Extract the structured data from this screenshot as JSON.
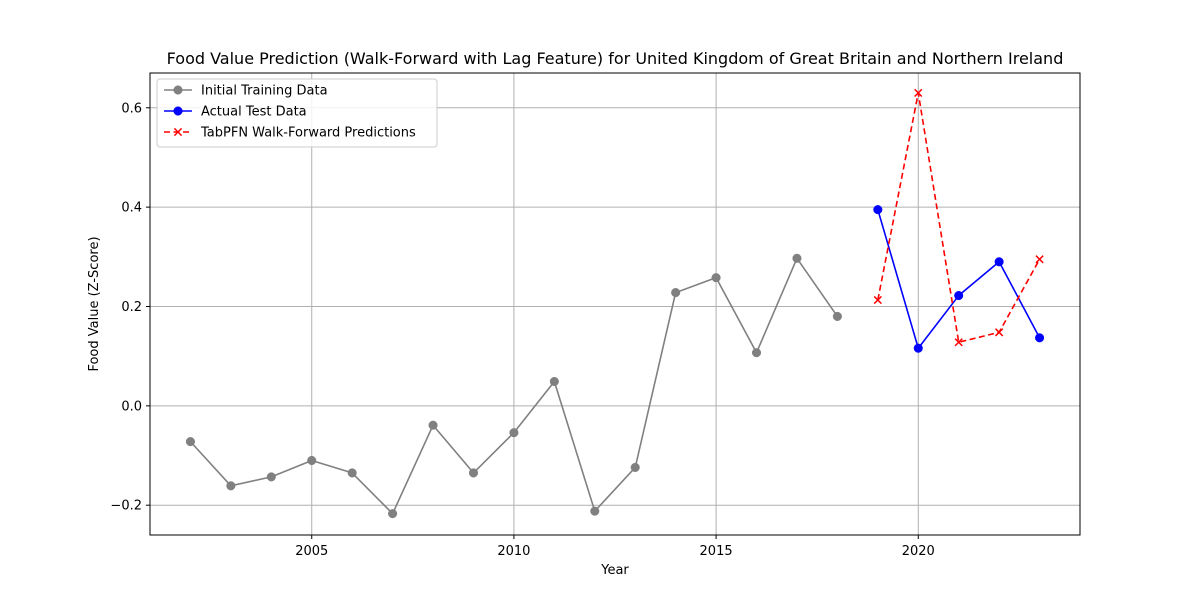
{
  "chart_data": {
    "type": "line",
    "title": "Food Value Prediction (Walk-Forward with Lag Feature) for United Kingdom of Great Britain and Northern Ireland",
    "xlabel": "Year",
    "ylabel": "Food Value (Z-Score)",
    "xlim": [
      2001,
      2024
    ],
    "ylim": [
      -0.26,
      0.67
    ],
    "x_ticks": [
      2005,
      2010,
      2015,
      2020
    ],
    "y_ticks": [
      -0.2,
      0.0,
      0.2,
      0.4,
      0.6
    ],
    "y_tick_labels": [
      "−0.2",
      "0.0",
      "0.2",
      "0.4",
      "0.6"
    ],
    "grid": true,
    "legend_position": "upper left",
    "series": [
      {
        "name": "Initial Training Data",
        "color": "#808080",
        "marker": "circle",
        "linestyle": "solid",
        "x": [
          2002,
          2003,
          2004,
          2005,
          2006,
          2007,
          2008,
          2009,
          2010,
          2011,
          2012,
          2013,
          2014,
          2015,
          2016,
          2017,
          2018
        ],
        "y": [
          -0.072,
          -0.161,
          -0.143,
          -0.11,
          -0.135,
          -0.217,
          -0.039,
          -0.135,
          -0.054,
          0.049,
          -0.212,
          -0.124,
          0.228,
          0.258,
          0.107,
          0.297,
          0.18
        ]
      },
      {
        "name": "Actual Test Data",
        "color": "#0000ff",
        "marker": "circle",
        "linestyle": "solid",
        "x": [
          2019,
          2020,
          2021,
          2022,
          2023
        ],
        "y": [
          0.395,
          0.116,
          0.222,
          0.29,
          0.137
        ]
      },
      {
        "name": "TabPFN Walk-Forward Predictions",
        "color": "#ff0000",
        "marker": "x",
        "linestyle": "dashed",
        "x": [
          2019,
          2020,
          2021,
          2022,
          2023
        ],
        "y": [
          0.213,
          0.63,
          0.128,
          0.148,
          0.295
        ]
      }
    ]
  }
}
